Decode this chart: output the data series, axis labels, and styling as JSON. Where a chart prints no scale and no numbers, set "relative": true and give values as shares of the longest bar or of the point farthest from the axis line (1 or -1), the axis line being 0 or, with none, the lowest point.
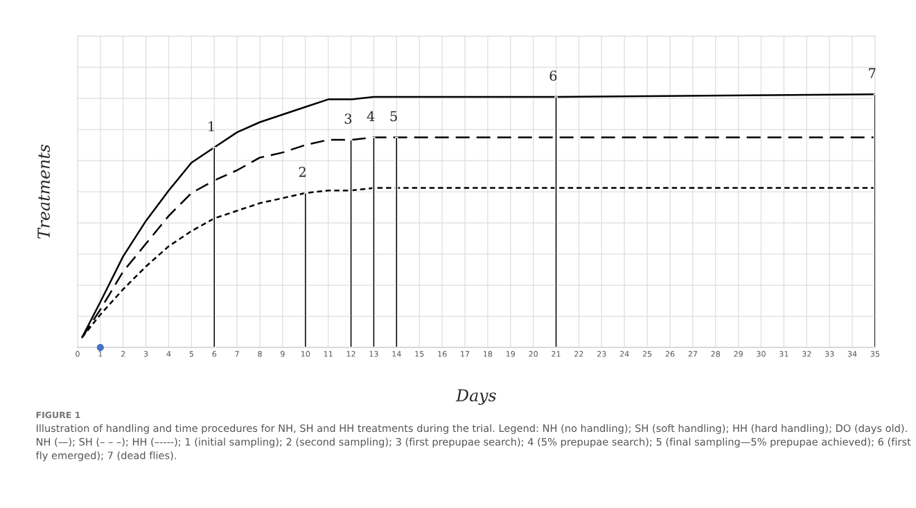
{
  "chart_data": {
    "type": "line",
    "relative": true,
    "xlabel": "Days",
    "ylabel": "Treatments",
    "xlim": [
      0,
      35
    ],
    "xticks": [
      0,
      1,
      2,
      3,
      4,
      5,
      6,
      7,
      8,
      9,
      10,
      11,
      12,
      13,
      14,
      15,
      16,
      17,
      18,
      19,
      20,
      21,
      22,
      23,
      24,
      25,
      26,
      27,
      28,
      29,
      30,
      31,
      32,
      33,
      34,
      35
    ],
    "grid": true,
    "series": [
      {
        "color": "#000000",
        "line_style": "solid",
        "x": [
          0.2,
          1,
          2,
          3,
          4,
          5,
          6,
          7,
          8,
          9,
          10,
          11,
          12,
          13,
          14,
          21,
          35
        ],
        "values": [
          0.04,
          0.18,
          0.36,
          0.5,
          0.62,
          0.73,
          0.79,
          0.85,
          0.89,
          0.92,
          0.95,
          0.98,
          0.98,
          0.99,
          0.99,
          0.99,
          1
        ]
      },
      {
        "color": "#000000",
        "line_style": "dashed",
        "x": [
          0.2,
          1,
          2,
          3,
          4,
          5,
          6,
          7,
          8,
          9,
          10,
          11,
          12,
          13,
          14,
          21,
          35
        ],
        "values": [
          0.04,
          0.15,
          0.3,
          0.41,
          0.52,
          0.61,
          0.66,
          0.7,
          0.75,
          0.77,
          0.8,
          0.82,
          0.82,
          0.83,
          0.83,
          0.83,
          0.83
        ]
      },
      {
        "color": "#000000",
        "line_style": "dotted",
        "x": [
          0.2,
          1,
          2,
          3,
          4,
          5,
          6,
          7,
          8,
          9,
          10,
          11,
          12,
          13,
          14,
          21,
          35
        ],
        "values": [
          0.04,
          0.13,
          0.23,
          0.32,
          0.4,
          0.46,
          0.51,
          0.54,
          0.57,
          0.59,
          0.61,
          0.62,
          0.62,
          0.63,
          0.63,
          0.63,
          0.63
        ]
      },
      {
        "type": "bar",
        "color": "#000000",
        "x": [
          6,
          10,
          12,
          13,
          14,
          21,
          35
        ],
        "values": [
          0.79,
          0.61,
          0.82,
          0.83,
          0.83,
          0.99,
          1
        ]
      },
      {
        "type": "scatter",
        "color": "#4472c4",
        "marker": "circle",
        "x": [
          1
        ],
        "values": [
          0
        ]
      }
    ],
    "annotations": [
      {
        "text": "1",
        "x": 6,
        "y": 0.79
      },
      {
        "text": "2",
        "x": 10,
        "y": 0.61
      },
      {
        "text": "3",
        "x": 12,
        "y": 0.82
      },
      {
        "text": "4",
        "x": 13,
        "y": 0.83
      },
      {
        "text": "5",
        "x": 14,
        "y": 0.83
      },
      {
        "text": "6",
        "x": 21,
        "y": 0.99
      },
      {
        "text": "7",
        "x": 35,
        "y": 1
      },
      "FIGURE 1",
      "Illustration of handling and time procedures for NH, SH and HH treatments during the trial. Legend: NH (no handling); SH (soft handling); HH (hard handling); DO (days old). NH (—); SH (– – –); HH (–----); 1 (initial sampling); 2 (second sampling); 3 (first prepupae search); 4 (5% prepupae search); 5 (final sampling—5% prepupae achieved); 6 (first fly emerged); 7 (dead flies)."
    ]
  }
}
